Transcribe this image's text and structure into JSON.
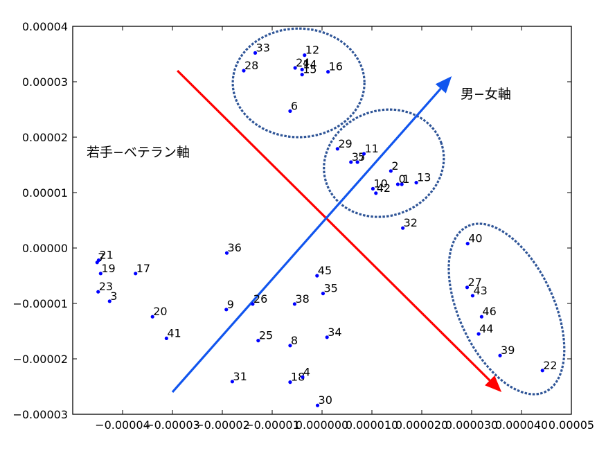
{
  "chart_data": {
    "type": "scatter",
    "title": "",
    "xlabel": "",
    "ylabel": "",
    "xlim": [
      -5e-05,
      5e-05
    ],
    "ylim": [
      -3e-05,
      4e-05
    ],
    "x_tick_labels": [
      "−0.00004",
      "−0.00003",
      "−0.00002",
      "−0.00001",
      "0.000000",
      "0.000010",
      "0.000020",
      "0.000030",
      "0.000040",
      "0.00005"
    ],
    "y_tick_labels": [
      "−0.00003",
      "−0.00002",
      "−0.00001",
      "0.00000",
      "0.00001",
      "0.00002",
      "0.00003",
      "0.00004"
    ],
    "grid": false,
    "marker_color": "#0000ff",
    "points": [
      {
        "label": "33",
        "x": -1.34e-05,
        "y": 3.52e-05
      },
      {
        "label": "12",
        "x": -3.5e-06,
        "y": 3.48e-05
      },
      {
        "label": "24",
        "x": -5.4e-06,
        "y": 3.25e-05
      },
      {
        "label": "14",
        "x": -4e-06,
        "y": 3.22e-05
      },
      {
        "label": "15",
        "x": -4e-06,
        "y": 3.13e-05
      },
      {
        "label": "28",
        "x": -1.57e-05,
        "y": 3.2e-05
      },
      {
        "label": "16",
        "x": 1.2e-06,
        "y": 3.18e-05
      },
      {
        "label": "6",
        "x": -6.4e-06,
        "y": 2.47e-05
      },
      {
        "label": "29",
        "x": 3.1e-06,
        "y": 1.79e-05
      },
      {
        "label": "37",
        "x": 5.8e-06,
        "y": 1.55e-05
      },
      {
        "label": "5",
        "x": 7.1e-06,
        "y": 1.55e-05
      },
      {
        "label": "11",
        "x": 8.4e-06,
        "y": 1.7e-05
      },
      {
        "label": "2",
        "x": 1.38e-05,
        "y": 1.39e-05
      },
      {
        "label": "0",
        "x": 1.52e-05,
        "y": 1.15e-05
      },
      {
        "label": "1",
        "x": 1.6e-05,
        "y": 1.15e-05
      },
      {
        "label": "13",
        "x": 1.89e-05,
        "y": 1.18e-05
      },
      {
        "label": "10",
        "x": 1.02e-05,
        "y": 1.07e-05
      },
      {
        "label": "42",
        "x": 1.08e-05,
        "y": 9.9e-06
      },
      {
        "label": "32",
        "x": 1.62e-05,
        "y": 3.6e-06
      },
      {
        "label": "40",
        "x": 2.92e-05,
        "y": 8e-07
      },
      {
        "label": "27",
        "x": 2.91e-05,
        "y": -7.1e-06
      },
      {
        "label": "43",
        "x": 3.02e-05,
        "y": -8.6e-06
      },
      {
        "label": "46",
        "x": 3.2e-05,
        "y": -1.24e-05
      },
      {
        "label": "44",
        "x": 3.14e-05,
        "y": -1.55e-05
      },
      {
        "label": "39",
        "x": 3.57e-05,
        "y": -1.94e-05
      },
      {
        "label": "22",
        "x": 4.42e-05,
        "y": -2.21e-05
      },
      {
        "label": "7",
        "x": -4.51e-05,
        "y": -2.6e-06
      },
      {
        "label": "21",
        "x": -4.48e-05,
        "y": -2.2e-06
      },
      {
        "label": "19",
        "x": -4.44e-05,
        "y": -4.6e-06
      },
      {
        "label": "17",
        "x": -3.74e-05,
        "y": -4.6e-06
      },
      {
        "label": "36",
        "x": -1.91e-05,
        "y": -9e-07
      },
      {
        "label": "23",
        "x": -4.49e-05,
        "y": -7.9e-06
      },
      {
        "label": "3",
        "x": -4.26e-05,
        "y": -9.6e-06
      },
      {
        "label": "20",
        "x": -3.4e-05,
        "y": -1.24e-05
      },
      {
        "label": "9",
        "x": -1.92e-05,
        "y": -1.11e-05
      },
      {
        "label": "26",
        "x": -1.39e-05,
        "y": -1.01e-05
      },
      {
        "label": "38",
        "x": -5.5e-06,
        "y": -1.01e-05
      },
      {
        "label": "45",
        "x": -1e-06,
        "y": -5e-06
      },
      {
        "label": "35",
        "x": 2e-07,
        "y": -8.2e-06
      },
      {
        "label": "41",
        "x": -3.12e-05,
        "y": -1.63e-05
      },
      {
        "label": "25",
        "x": -1.28e-05,
        "y": -1.67e-05
      },
      {
        "label": "8",
        "x": -6.4e-06,
        "y": -1.76e-05
      },
      {
        "label": "34",
        "x": 1e-06,
        "y": -1.61e-05
      },
      {
        "label": "31",
        "x": -1.8e-05,
        "y": -2.41e-05
      },
      {
        "label": "18",
        "x": -6.4e-06,
        "y": -2.42e-05
      },
      {
        "label": "4",
        "x": -3.9e-06,
        "y": -2.33e-05
      },
      {
        "label": "30",
        "x": -9e-07,
        "y": -2.84e-05
      }
    ],
    "annotations": {
      "young_veteran_axis": {
        "label": "若手−ベテラン軸",
        "color": "#ff0000",
        "from": [
          -2.9e-05,
          3.2e-05
        ],
        "to": [
          3.6e-05,
          -2.6e-05
        ]
      },
      "male_female_axis": {
        "label": "男−女軸",
        "color": "#1155ee",
        "from": [
          -3e-05,
          -2.6e-05
        ],
        "to": [
          2.6e-05,
          3.1e-05
        ]
      },
      "clusters_color": "#2f5597",
      "clusters": [
        {
          "cx": -4.7e-06,
          "cy": 2.98e-05,
          "rx": 1.32e-05,
          "ry": 9.8e-06
        },
        {
          "cx": 1.24e-05,
          "cy": 1.53e-05,
          "rx": 1.22e-05,
          "ry": 9.5e-06,
          "angle": -20
        },
        {
          "cx": 3.7e-05,
          "cy": -1.1e-05,
          "rx": 9.5e-06,
          "ry": 1.65e-05,
          "angle": -25
        }
      ]
    }
  }
}
